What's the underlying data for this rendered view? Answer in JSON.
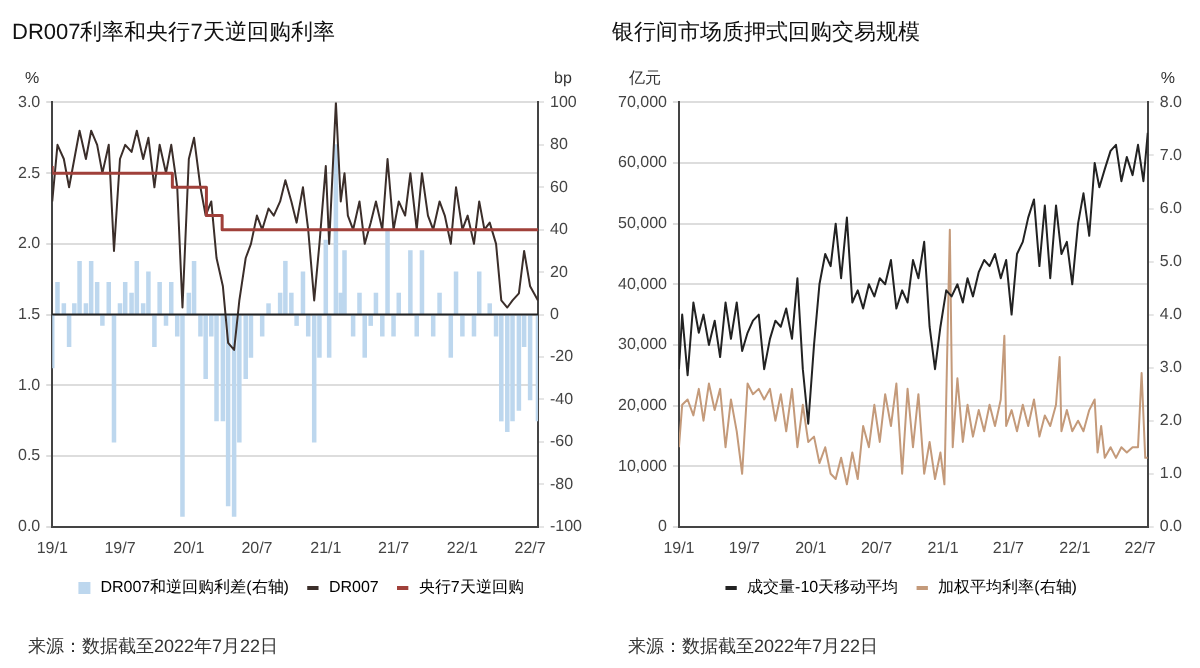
{
  "chart_data": [
    {
      "type": "line",
      "title": "DR007利率和央行7天逆回购利率",
      "ylabel": "%",
      "y2label": "bp",
      "annotations": [
        "来源：数据截至2022年7月22日"
      ],
      "legend": "bottom",
      "grid": "y",
      "marker": "none",
      "line_style": "solid",
      "xlim": [
        "2019-01-01",
        "2022-07-22"
      ],
      "xticks": [
        {
          "value": "2019-01-01",
          "label": "19/1"
        },
        {
          "value": "2019-07-01",
          "label": "19/7"
        },
        {
          "value": "2020-01-01",
          "label": "20/1"
        },
        {
          "value": "2020-07-01",
          "label": "20/7"
        },
        {
          "value": "2021-01-01",
          "label": "21/1"
        },
        {
          "value": "2021-07-01",
          "label": "21/7"
        },
        {
          "value": "2022-01-01",
          "label": "22/1"
        },
        {
          "value": "2022-07-01",
          "label": "22/7"
        }
      ],
      "ylim": [
        0,
        3
      ],
      "yticks": [
        {
          "value": 0,
          "label": "0.0"
        },
        {
          "value": 0.5,
          "label": "0.5"
        },
        {
          "value": 1,
          "label": "1.0"
        },
        {
          "value": 1.5,
          "label": "1.5"
        },
        {
          "value": 2,
          "label": "2.0"
        },
        {
          "value": 2.5,
          "label": "2.5"
        },
        {
          "value": 3,
          "label": "3.0"
        }
      ],
      "y2lim": [
        -100,
        100
      ],
      "y2ticks": [
        -100,
        -80,
        -60,
        -40,
        -20,
        0,
        20,
        40,
        60,
        80,
        100
      ],
      "ref_lines": [
        {
          "axis": "y2",
          "value": 0,
          "color": "#222222"
        }
      ],
      "x": [
        "2019-01-01",
        "2019-01-15",
        "2019-02-01",
        "2019-02-15",
        "2019-03-01",
        "2019-03-15",
        "2019-04-01",
        "2019-04-15",
        "2019-05-01",
        "2019-05-15",
        "2019-06-01",
        "2019-06-15",
        "2019-07-01",
        "2019-07-15",
        "2019-08-01",
        "2019-08-15",
        "2019-09-01",
        "2019-09-15",
        "2019-10-01",
        "2019-10-15",
        "2019-11-01",
        "2019-11-15",
        "2019-12-01",
        "2019-12-15",
        "2020-01-01",
        "2020-01-15",
        "2020-02-01",
        "2020-02-15",
        "2020-03-01",
        "2020-03-15",
        "2020-04-01",
        "2020-04-15",
        "2020-05-01",
        "2020-05-15",
        "2020-06-01",
        "2020-06-15",
        "2020-07-01",
        "2020-07-15",
        "2020-08-01",
        "2020-08-15",
        "2020-09-01",
        "2020-09-15",
        "2020-10-01",
        "2020-10-15",
        "2020-11-01",
        "2020-11-15",
        "2020-12-01",
        "2020-12-15",
        "2021-01-01",
        "2021-01-10",
        "2021-01-28",
        "2021-02-10",
        "2021-02-20",
        "2021-03-01",
        "2021-03-15",
        "2021-04-01",
        "2021-04-15",
        "2021-05-01",
        "2021-05-15",
        "2021-06-01",
        "2021-06-15",
        "2021-07-01",
        "2021-07-15",
        "2021-08-01",
        "2021-08-15",
        "2021-09-01",
        "2021-09-15",
        "2021-10-01",
        "2021-10-15",
        "2021-11-01",
        "2021-11-15",
        "2021-12-01",
        "2021-12-15",
        "2022-01-01",
        "2022-01-15",
        "2022-02-01",
        "2022-02-15",
        "2022-03-01",
        "2022-03-15",
        "2022-04-01",
        "2022-04-15",
        "2022-05-01",
        "2022-05-15",
        "2022-06-01",
        "2022-06-15",
        "2022-07-01",
        "2022-07-22"
      ],
      "series": [
        {
          "name": "DR007和逆回购利差(右轴)",
          "type": "bar",
          "axis": "y2",
          "color": "#bdd7ee",
          "values": [
            -25,
            15,
            5,
            -15,
            5,
            25,
            5,
            25,
            15,
            -5,
            15,
            -60,
            5,
            15,
            10,
            25,
            5,
            20,
            -15,
            15,
            -5,
            15,
            -10,
            -95,
            10,
            25,
            -10,
            -30,
            -10,
            -50,
            -50,
            -90,
            -95,
            -60,
            -30,
            -20,
            0,
            -10,
            5,
            0,
            10,
            25,
            10,
            -5,
            20,
            -10,
            -60,
            -20,
            35,
            -20,
            80,
            10,
            30,
            0,
            -10,
            10,
            -20,
            -5,
            10,
            -10,
            40,
            -10,
            10,
            0,
            30,
            -10,
            30,
            0,
            -10,
            10,
            0,
            -20,
            20,
            -10,
            0,
            -10,
            20,
            0,
            5,
            -10,
            -50,
            -55,
            -50,
            -45,
            -15,
            -40,
            -50
          ]
        },
        {
          "name": "DR007",
          "color": "#3b2e2a",
          "values": [
            2.3,
            2.7,
            2.6,
            2.4,
            2.6,
            2.8,
            2.6,
            2.8,
            2.7,
            2.5,
            2.7,
            1.95,
            2.6,
            2.7,
            2.65,
            2.8,
            2.6,
            2.75,
            2.4,
            2.7,
            2.5,
            2.7,
            2.4,
            1.55,
            2.6,
            2.75,
            2.4,
            2.2,
            2.3,
            1.9,
            1.7,
            1.3,
            1.25,
            1.6,
            1.9,
            2.0,
            2.2,
            2.1,
            2.25,
            2.2,
            2.3,
            2.45,
            2.3,
            2.15,
            2.4,
            2.1,
            1.6,
            2.0,
            2.55,
            2.0,
            3.0,
            2.3,
            2.5,
            2.2,
            2.1,
            2.3,
            2.0,
            2.15,
            2.3,
            2.1,
            2.6,
            2.1,
            2.3,
            2.2,
            2.5,
            2.1,
            2.5,
            2.2,
            2.1,
            2.3,
            2.2,
            2.0,
            2.4,
            2.1,
            2.2,
            2.0,
            2.3,
            2.1,
            2.15,
            2.0,
            1.6,
            1.55,
            1.6,
            1.65,
            1.95,
            1.7,
            1.6
          ]
        },
        {
          "name": "央行7天逆回购",
          "type": "step",
          "color": "#a0403a",
          "x": [
            "2019-01-01",
            "2019-11-18",
            "2020-02-17",
            "2020-03-30",
            "2022-01-17",
            "2022-07-22"
          ],
          "values": [
            2.55,
            2.5,
            2.4,
            2.2,
            2.1,
            2.1
          ]
        }
      ]
    },
    {
      "type": "line",
      "title": "银行间市场质押式回购交易规模",
      "ylabel": "亿元",
      "y2label": "%",
      "annotations": [
        "来源：数据截至2022年7月22日"
      ],
      "legend": "bottom",
      "grid": "y",
      "marker": "none",
      "line_style": "solid",
      "xlim": [
        "2019-01-01",
        "2022-07-22"
      ],
      "xticks": [
        {
          "value": "2019-01-01",
          "label": "19/1"
        },
        {
          "value": "2019-07-01",
          "label": "19/7"
        },
        {
          "value": "2020-01-01",
          "label": "20/1"
        },
        {
          "value": "2020-07-01",
          "label": "20/7"
        },
        {
          "value": "2021-01-01",
          "label": "21/1"
        },
        {
          "value": "2021-07-01",
          "label": "21/7"
        },
        {
          "value": "2022-01-01",
          "label": "22/1"
        },
        {
          "value": "2022-07-01",
          "label": "22/7"
        }
      ],
      "ylim": [
        0,
        70000
      ],
      "yticks": [
        {
          "value": 0,
          "label": "0"
        },
        {
          "value": 10000,
          "label": "10,000"
        },
        {
          "value": 20000,
          "label": "20,000"
        },
        {
          "value": 30000,
          "label": "30,000"
        },
        {
          "value": 40000,
          "label": "40,000"
        },
        {
          "value": 50000,
          "label": "50,000"
        },
        {
          "value": 60000,
          "label": "60,000"
        },
        {
          "value": 70000,
          "label": "70,000"
        }
      ],
      "y2lim": [
        0,
        8
      ],
      "y2ticks": [
        {
          "value": 0,
          "label": "0.0"
        },
        {
          "value": 1,
          "label": "1.0"
        },
        {
          "value": 2,
          "label": "2.0"
        },
        {
          "value": 3,
          "label": "3.0"
        },
        {
          "value": 4,
          "label": "4.0"
        },
        {
          "value": 5,
          "label": "5.0"
        },
        {
          "value": 6,
          "label": "6.0"
        },
        {
          "value": 7,
          "label": "7.0"
        },
        {
          "value": 8,
          "label": "8.0"
        }
      ],
      "series": [
        {
          "name": "成交量-10天移动平均",
          "color": "#222222",
          "x": [
            "2019-01-01",
            "2019-01-10",
            "2019-01-25",
            "2019-02-10",
            "2019-02-25",
            "2019-03-10",
            "2019-03-25",
            "2019-04-10",
            "2019-04-25",
            "2019-05-10",
            "2019-05-25",
            "2019-06-10",
            "2019-06-25",
            "2019-07-10",
            "2019-07-25",
            "2019-08-10",
            "2019-08-25",
            "2019-09-10",
            "2019-09-25",
            "2019-10-10",
            "2019-10-25",
            "2019-11-10",
            "2019-11-25",
            "2019-12-10",
            "2019-12-25",
            "2020-01-10",
            "2020-01-25",
            "2020-02-10",
            "2020-02-25",
            "2020-03-10",
            "2020-03-25",
            "2020-04-10",
            "2020-04-25",
            "2020-05-10",
            "2020-05-25",
            "2020-06-10",
            "2020-06-25",
            "2020-07-10",
            "2020-07-25",
            "2020-08-10",
            "2020-08-25",
            "2020-09-10",
            "2020-09-25",
            "2020-10-10",
            "2020-10-25",
            "2020-11-10",
            "2020-11-25",
            "2020-12-10",
            "2020-12-25",
            "2021-01-10",
            "2021-01-25",
            "2021-02-10",
            "2021-02-25",
            "2021-03-10",
            "2021-03-25",
            "2021-04-10",
            "2021-04-25",
            "2021-05-10",
            "2021-05-25",
            "2021-06-10",
            "2021-06-25",
            "2021-07-10",
            "2021-07-25",
            "2021-08-10",
            "2021-08-25",
            "2021-09-10",
            "2021-09-25",
            "2021-10-10",
            "2021-10-25",
            "2021-11-10",
            "2021-11-25",
            "2021-12-10",
            "2021-12-25",
            "2022-01-10",
            "2022-01-25",
            "2022-02-10",
            "2022-02-25",
            "2022-03-10",
            "2022-03-25",
            "2022-04-10",
            "2022-04-25",
            "2022-05-10",
            "2022-05-25",
            "2022-06-10",
            "2022-06-25",
            "2022-07-10",
            "2022-07-22"
          ],
          "values": [
            26000,
            35000,
            25000,
            37000,
            32000,
            35000,
            30000,
            34000,
            28000,
            37000,
            31000,
            37000,
            29000,
            32000,
            34000,
            35000,
            26000,
            31000,
            34000,
            33000,
            36000,
            31000,
            41000,
            26000,
            17000,
            30000,
            40000,
            45000,
            43000,
            50000,
            41000,
            51000,
            37000,
            39000,
            36000,
            40000,
            38000,
            41000,
            40000,
            44000,
            36000,
            39000,
            37000,
            44000,
            41000,
            47000,
            33000,
            26000,
            33000,
            39000,
            38000,
            40000,
            37000,
            41000,
            38000,
            42000,
            44000,
            43000,
            45000,
            41000,
            44000,
            35000,
            45000,
            47000,
            51000,
            54000,
            43000,
            53000,
            41000,
            53000,
            45000,
            47000,
            40000,
            50000,
            55000,
            48000,
            60000,
            56000,
            59000,
            62000,
            63000,
            57000,
            61000,
            58000,
            63000,
            57000,
            65000
          ]
        },
        {
          "name": "加权平均利率(右轴)",
          "axis": "y2",
          "color": "#c49a7a",
          "x": [
            "2019-01-01",
            "2019-01-10",
            "2019-01-25",
            "2019-02-10",
            "2019-02-25",
            "2019-03-10",
            "2019-03-25",
            "2019-04-10",
            "2019-04-25",
            "2019-05-10",
            "2019-05-25",
            "2019-06-10",
            "2019-06-25",
            "2019-07-10",
            "2019-07-25",
            "2019-08-10",
            "2019-08-25",
            "2019-09-10",
            "2019-09-25",
            "2019-10-10",
            "2019-10-25",
            "2019-11-10",
            "2019-11-25",
            "2019-12-10",
            "2019-12-25",
            "2020-01-10",
            "2020-01-25",
            "2020-02-10",
            "2020-02-25",
            "2020-03-10",
            "2020-03-25",
            "2020-04-10",
            "2020-04-25",
            "2020-05-10",
            "2020-05-25",
            "2020-06-10",
            "2020-06-25",
            "2020-07-10",
            "2020-07-25",
            "2020-08-10",
            "2020-08-25",
            "2020-09-10",
            "2020-09-25",
            "2020-10-10",
            "2020-10-25",
            "2020-11-10",
            "2020-11-25",
            "2020-12-10",
            "2020-12-25",
            "2021-01-05",
            "2021-01-20",
            "2021-01-28",
            "2021-02-10",
            "2021-02-25",
            "2021-03-10",
            "2021-03-25",
            "2021-04-10",
            "2021-04-25",
            "2021-05-10",
            "2021-05-25",
            "2021-06-10",
            "2021-06-20",
            "2021-06-25",
            "2021-07-10",
            "2021-07-25",
            "2021-08-10",
            "2021-08-25",
            "2021-09-10",
            "2021-09-25",
            "2021-10-10",
            "2021-10-25",
            "2021-11-10",
            "2021-11-20",
            "2021-11-25",
            "2021-12-10",
            "2021-12-25",
            "2022-01-10",
            "2022-01-25",
            "2022-02-10",
            "2022-02-25",
            "2022-03-05",
            "2022-03-15",
            "2022-03-25",
            "2022-04-10",
            "2022-04-25",
            "2022-05-10",
            "2022-05-25",
            "2022-06-10",
            "2022-06-25",
            "2022-07-05",
            "2022-07-15",
            "2022-07-22"
          ],
          "values": [
            1.5,
            2.3,
            2.4,
            2.1,
            2.6,
            2.0,
            2.7,
            2.2,
            2.6,
            1.5,
            2.4,
            1.8,
            1.0,
            2.7,
            2.5,
            2.6,
            2.4,
            2.6,
            2.0,
            2.5,
            1.8,
            2.6,
            1.5,
            2.3,
            1.6,
            1.7,
            1.2,
            1.5,
            1.0,
            0.9,
            1.3,
            0.8,
            1.4,
            0.9,
            1.9,
            1.5,
            2.3,
            1.6,
            2.5,
            1.9,
            2.7,
            1.0,
            2.6,
            1.5,
            2.5,
            1.0,
            1.6,
            0.9,
            1.4,
            0.8,
            5.6,
            1.5,
            2.8,
            1.6,
            2.3,
            1.7,
            2.2,
            1.8,
            2.3,
            1.9,
            2.4,
            3.6,
            1.9,
            2.2,
            1.8,
            2.3,
            1.9,
            2.4,
            1.7,
            2.1,
            1.9,
            2.3,
            3.2,
            1.8,
            2.2,
            1.8,
            2.0,
            1.8,
            2.2,
            2.4,
            1.4,
            1.9,
            1.3,
            1.5,
            1.3,
            1.5,
            1.4,
            1.5,
            1.5,
            2.9,
            1.3,
            1.3
          ]
        }
      ]
    }
  ]
}
